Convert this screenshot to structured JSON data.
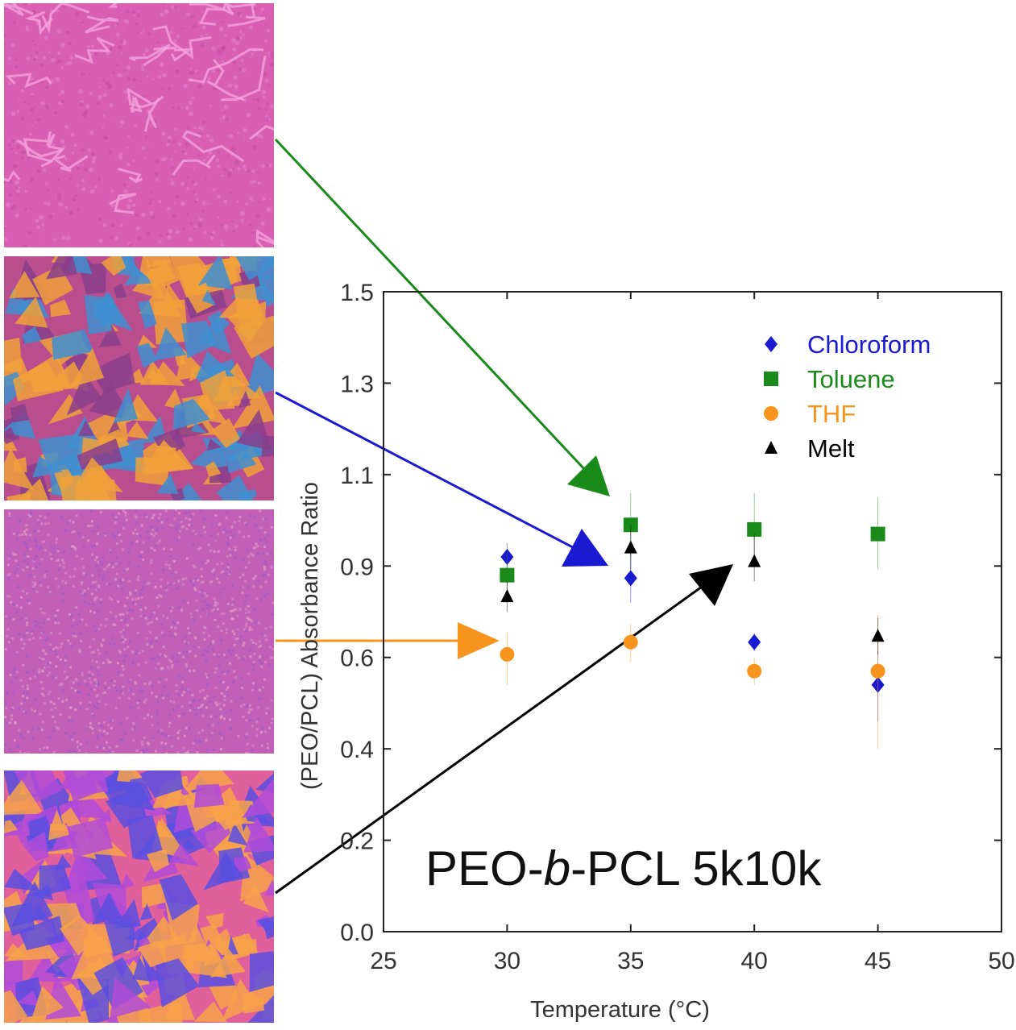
{
  "micrographs": [
    {
      "name": "micrograph-toluene",
      "colors": {
        "base": "#d85fb2",
        "a": "#e57fcb",
        "b": "#c74ea4",
        "c": "#f5a3de"
      }
    },
    {
      "name": "micrograph-chloroform",
      "colors": {
        "base": "#b94e8e",
        "a": "#f0a13a",
        "b": "#3f8fd0",
        "c": "#8a3e8c"
      }
    },
    {
      "name": "micrograph-thf",
      "colors": {
        "base": "#c45fb8",
        "a": "#d98ac0",
        "b": "#9a5cc8",
        "c": "#e39fc9"
      }
    },
    {
      "name": "micrograph-melt",
      "colors": {
        "base": "#e0609b",
        "a": "#f7a24a",
        "b": "#5a4fe0",
        "c": "#b14bd8"
      }
    }
  ],
  "arrows": [
    {
      "name": "arrow-toluene",
      "color": "#1a8a1a"
    },
    {
      "name": "arrow-chloroform",
      "color": "#1a1ad0"
    },
    {
      "name": "arrow-thf",
      "color": "#f7941d"
    },
    {
      "name": "arrow-melt",
      "color": "#000000"
    }
  ],
  "chart_data": {
    "type": "scatter",
    "title": "PEO-b-PCL 5k10k",
    "title_parts": [
      "PEO-",
      "b",
      "-PCL 5k10k"
    ],
    "xlabel": "Temperature (°C)",
    "ylabel": "(PEO/PCL) Absorbance Ratio",
    "xlim": [
      25,
      50
    ],
    "ylim": [
      0.0,
      1.5
    ],
    "x_ticks": [
      "25",
      "30",
      "35",
      "40",
      "45",
      "50"
    ],
    "y_ticks": [
      "0.0",
      "0.2",
      "0.4",
      "0.6",
      "0.9",
      "1.1",
      "1.3",
      "1.5"
    ],
    "legend_position": "top-right",
    "series": [
      {
        "name": "Chloroform",
        "color": "#1a1ad0",
        "marker": "diamond",
        "points": [
          {
            "x": 30,
            "y": 0.92,
            "err": 0.03
          },
          {
            "x": 35,
            "y": 0.86,
            "err": 0.08
          },
          {
            "x": 40,
            "y": 0.65,
            "err": 0.03
          },
          {
            "x": 45,
            "y": 0.54,
            "err": 0.08
          }
        ]
      },
      {
        "name": "Toluene",
        "color": "#1a8a1a",
        "marker": "square",
        "points": [
          {
            "x": 30,
            "y": 0.87,
            "err": 0.06
          },
          {
            "x": 35,
            "y": 0.99,
            "err": 0.07
          },
          {
            "x": 40,
            "y": 0.98,
            "err": 0.08
          },
          {
            "x": 45,
            "y": 0.97,
            "err": 0.08
          }
        ]
      },
      {
        "name": "THF",
        "color": "#f7941d",
        "marker": "circle",
        "points": [
          {
            "x": 30,
            "y": 0.61,
            "err": 0.07
          },
          {
            "x": 35,
            "y": 0.65,
            "err": 0.06
          },
          {
            "x": 40,
            "y": 0.57,
            "err": 0.03
          },
          {
            "x": 45,
            "y": 0.57,
            "err": 0.17
          }
        ]
      },
      {
        "name": "Melt",
        "color": "#000000",
        "marker": "triangle",
        "points": [
          {
            "x": 30,
            "y": 0.8,
            "err": 0.05
          },
          {
            "x": 35,
            "y": 0.94,
            "err": 0.05
          },
          {
            "x": 40,
            "y": 0.91,
            "err": 0.06
          },
          {
            "x": 45,
            "y": 0.67,
            "err": 0.06
          }
        ]
      }
    ]
  }
}
